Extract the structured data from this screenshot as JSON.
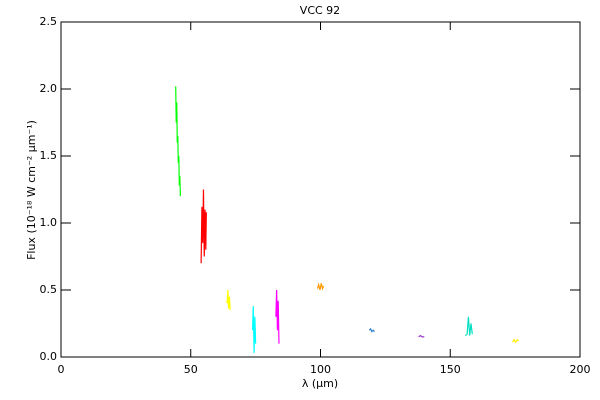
{
  "chart_data": {
    "type": "line",
    "title": "VCC 92",
    "xlabel": "λ (μm)",
    "ylabel": "Flux (10⁻¹⁸ W cm⁻² μm⁻¹)",
    "xlim": [
      0,
      200
    ],
    "xticks": [
      0,
      50,
      100,
      150,
      200
    ],
    "ylim": [
      0,
      2.5
    ],
    "yticks": [
      {
        "value": 0,
        "label": "0.0"
      },
      0.5,
      {
        "value": 1,
        "label": "1.0"
      },
      1.5,
      {
        "value": 2,
        "label": "2.0"
      },
      2.5
    ],
    "series": [
      {
        "color": "#00ff00",
        "x": [
          44.2,
          44.4,
          44.6,
          44.8,
          45.0,
          45.2,
          45.4,
          45.6,
          45.8,
          46.0
        ],
        "values": [
          2.02,
          1.75,
          1.9,
          1.6,
          1.65,
          1.45,
          1.5,
          1.28,
          1.35,
          1.2
        ]
      },
      {
        "color": "#ff0000",
        "x": [
          54.0,
          54.3,
          54.6,
          54.9,
          55.2,
          55.5,
          55.8,
          56.0
        ],
        "values": [
          0.7,
          1.12,
          0.85,
          1.25,
          0.75,
          1.1,
          0.8,
          1.08
        ]
      },
      {
        "color": "#ffff00",
        "x": [
          64.0,
          64.3,
          64.6,
          64.9,
          65.2
        ],
        "values": [
          0.4,
          0.5,
          0.36,
          0.45,
          0.35
        ]
      },
      {
        "color": "#00ffff",
        "x": [
          73.8,
          74.1,
          74.4,
          74.7,
          75.0
        ],
        "values": [
          0.2,
          0.38,
          0.03,
          0.3,
          0.1
        ]
      },
      {
        "color": "#ff00ff",
        "x": [
          82.8,
          83.1,
          83.4,
          83.7,
          84.0
        ],
        "values": [
          0.3,
          0.5,
          0.2,
          0.42,
          0.1
        ]
      },
      {
        "color": "#ff9900",
        "x": [
          98.8,
          99.3,
          99.8,
          100.3,
          100.8,
          101.2
        ],
        "values": [
          0.51,
          0.54,
          0.5,
          0.55,
          0.51,
          0.53
        ]
      },
      {
        "color": "#2a7fd0",
        "x": [
          118.8,
          119.3,
          119.8,
          120.3,
          120.8
        ],
        "values": [
          0.2,
          0.21,
          0.19,
          0.2,
          0.19
        ]
      },
      {
        "color": "#9933cc",
        "x": [
          137.8,
          138.5,
          139.2,
          140.0
        ],
        "values": [
          0.15,
          0.16,
          0.15,
          0.15
        ]
      },
      {
        "color": "#00e0c0",
        "x": [
          155.8,
          156.5,
          157.0,
          157.5,
          158.0,
          158.5
        ],
        "values": [
          0.16,
          0.17,
          0.3,
          0.16,
          0.25,
          0.17
        ]
      },
      {
        "color": "#ffee00",
        "x": [
          174.0,
          174.6,
          175.2,
          175.8,
          176.3
        ],
        "values": [
          0.11,
          0.13,
          0.11,
          0.13,
          0.12
        ]
      }
    ]
  }
}
